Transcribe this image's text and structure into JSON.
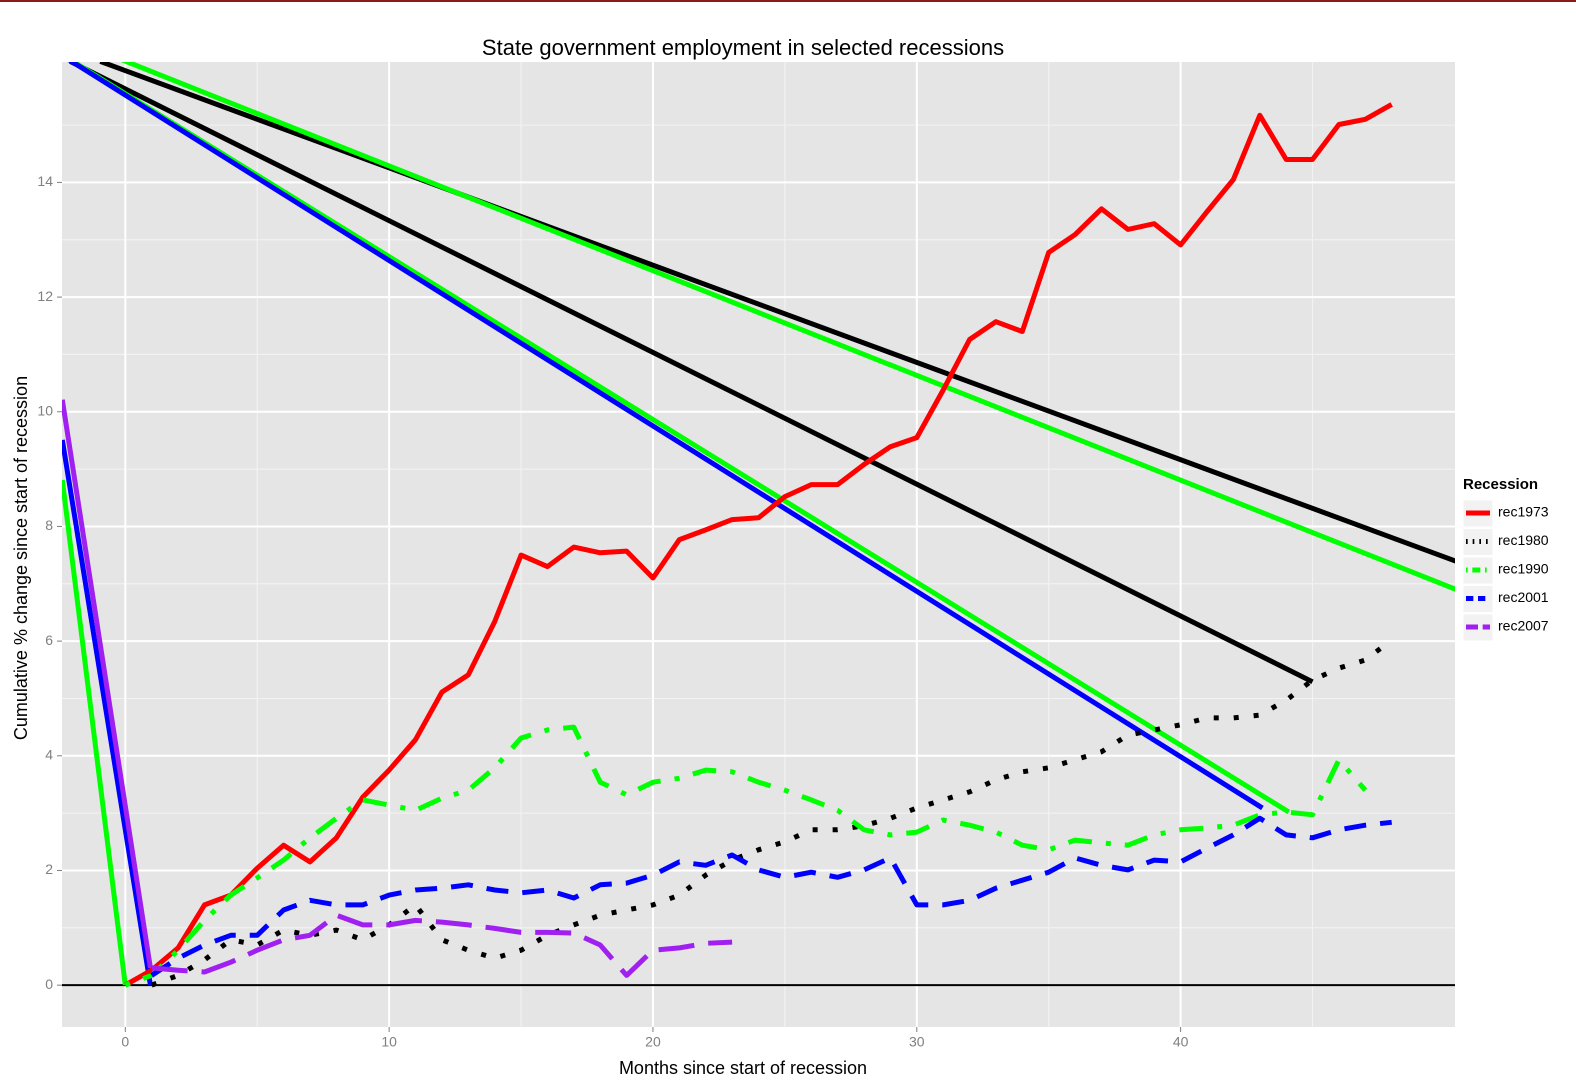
{
  "chart_data": {
    "type": "line",
    "title": "State government employment in selected recessions",
    "xlabel": "Months since start of recession",
    "ylabel": "Cumulative % change since start of recession",
    "legend_title": "Recession",
    "legend_position": "right",
    "grid": true,
    "hline": 0,
    "xlim": [
      -2.4,
      50.4
    ],
    "xticks": [
      0,
      10,
      20,
      30,
      40
    ],
    "ylim": [
      -0.73,
      16.1
    ],
    "yticks": [
      0,
      2,
      4,
      6,
      8,
      10,
      12,
      14
    ],
    "series": [
      {
        "name": "rec1973",
        "color": "#ff0000",
        "linetype": "solid",
        "x": [
          0,
          1,
          2,
          3,
          4,
          5,
          6,
          7,
          8,
          9,
          10,
          11,
          12,
          13,
          14,
          15,
          16,
          17,
          18,
          19,
          20,
          21,
          22,
          23,
          24,
          25,
          26,
          27,
          28,
          29,
          30,
          31,
          32,
          33,
          34,
          35,
          36,
          37,
          38,
          39,
          40,
          41,
          42,
          43,
          44,
          45,
          46,
          47,
          48
        ],
        "values": [
          0,
          0.26,
          0.65,
          1.4,
          1.57,
          2.04,
          2.44,
          2.15,
          2.57,
          3.28,
          3.75,
          4.28,
          5.11,
          5.41,
          6.34,
          7.5,
          7.3,
          7.64,
          7.54,
          7.57,
          7.1,
          7.77,
          7.94,
          8.12,
          8.15,
          8.52,
          8.73,
          8.73,
          9.08,
          9.39,
          9.55,
          10.38,
          11.26,
          11.57,
          11.4,
          12.78,
          13.09,
          13.54,
          13.18,
          13.28,
          12.91,
          13.49,
          14.05,
          15.17,
          14.4,
          14.4,
          15.01,
          15.1,
          15.36
        ]
      },
      {
        "name": "rec1980",
        "color": "#000000",
        "linetype": "dotted",
        "x": [
          1,
          2,
          3,
          4,
          5,
          6,
          7,
          8,
          9,
          10,
          11,
          12,
          13,
          14,
          15,
          16,
          17,
          18,
          19,
          20,
          21,
          22,
          23,
          24,
          25,
          26,
          27,
          28,
          29,
          30,
          31,
          32,
          33,
          34,
          35,
          36,
          37,
          38,
          39,
          40,
          41,
          42,
          43,
          44,
          45,
          46,
          47,
          48
        ],
        "values": [
          0,
          0.17,
          0.44,
          0.79,
          0.7,
          0.96,
          0.87,
          0.96,
          0.79,
          1.05,
          1.4,
          0.79,
          0.61,
          0.47,
          0.61,
          0.87,
          1.05,
          1.22,
          1.31,
          1.4,
          1.57,
          1.92,
          2.18,
          2.36,
          2.5,
          2.71,
          2.71,
          2.78,
          2.91,
          3.09,
          3.23,
          3.37,
          3.58,
          3.72,
          3.79,
          3.93,
          4.07,
          4.36,
          4.45,
          4.54,
          4.66,
          4.66,
          4.71,
          4.97,
          5.32,
          5.53,
          5.67,
          6.02
        ]
      },
      {
        "name": "rec1990",
        "color": "#00ff00",
        "linetype": "dotdash",
        "x": [
          0,
          1,
          2,
          3,
          4,
          5,
          6,
          7,
          8,
          9,
          10,
          11,
          12,
          13,
          14,
          15,
          16,
          17,
          18,
          19,
          20,
          21,
          22,
          23,
          24,
          25,
          26,
          27,
          28,
          29,
          30,
          31,
          32,
          33,
          34,
          35,
          36,
          37,
          38,
          39,
          40,
          41,
          42,
          43,
          44,
          45,
          46,
          47
        ],
        "values": [
          0,
          0.17,
          0.61,
          1.13,
          1.57,
          1.87,
          2.18,
          2.57,
          2.91,
          3.23,
          3.14,
          3.05,
          3.26,
          3.4,
          3.79,
          4.31,
          4.45,
          4.5,
          3.54,
          3.32,
          3.54,
          3.61,
          3.75,
          3.72,
          3.54,
          3.4,
          3.23,
          3.05,
          2.71,
          2.62,
          2.67,
          2.88,
          2.79,
          2.67,
          2.44,
          2.36,
          2.53,
          2.48,
          2.44,
          2.62,
          2.71,
          2.74,
          2.79,
          2.97,
          3.02,
          2.97,
          3.93,
          3.4
        ]
      },
      {
        "name": "rec2001",
        "color": "#0000ff",
        "linetype": "dashed",
        "x": [
          1,
          2,
          3,
          4,
          5,
          6,
          7,
          8,
          9,
          10,
          11,
          12,
          13,
          14,
          15,
          16,
          17,
          18,
          19,
          20,
          21,
          22,
          23,
          24,
          25,
          26,
          27,
          28,
          29,
          30,
          31,
          32,
          33,
          34,
          35,
          36,
          37,
          38,
          39,
          40,
          41,
          42,
          43,
          44,
          45,
          46,
          47,
          48
        ],
        "values": [
          0.17,
          0.47,
          0.7,
          0.87,
          0.87,
          1.31,
          1.48,
          1.4,
          1.4,
          1.57,
          1.66,
          1.69,
          1.75,
          1.66,
          1.61,
          1.66,
          1.52,
          1.75,
          1.78,
          1.92,
          2.15,
          2.09,
          2.27,
          2.01,
          1.88,
          1.97,
          1.88,
          2.01,
          2.22,
          1.4,
          1.4,
          1.48,
          1.69,
          1.83,
          1.97,
          2.22,
          2.09,
          2.01,
          2.18,
          2.15,
          2.39,
          2.62,
          2.91,
          2.62,
          2.57,
          2.71,
          2.79,
          2.84
        ]
      },
      {
        "name": "rec2007",
        "color": "#a020f0",
        "linetype": "longdash",
        "x": [
          1,
          2,
          3,
          4,
          5,
          6,
          7,
          8,
          9,
          10,
          11,
          12,
          13,
          14,
          15,
          16,
          17,
          18,
          19,
          20,
          21,
          22,
          23
        ],
        "values": [
          0.3,
          0.26,
          0.23,
          0.4,
          0.61,
          0.79,
          0.87,
          1.22,
          1.05,
          1.05,
          1.13,
          1.1,
          1.05,
          0.99,
          0.92,
          0.92,
          0.91,
          0.7,
          0.17,
          0.61,
          0.65,
          0.73,
          0.75
        ]
      },
      {
        "color": "#000000",
        "linetype": "solid",
        "x": [
          -0.95,
          51.04
        ],
        "values": [
          16.11,
          7.29
        ]
      },
      {
        "color": "#00ff00",
        "linetype": "solid",
        "x": [
          -4.74,
          51.04
        ],
        "values": [
          16.98,
          6.79
        ]
      },
      {
        "color": "#000000",
        "linetype": "solid",
        "x": [
          -2.09,
          45
        ],
        "values": [
          16.11,
          5.29
        ]
      },
      {
        "color": "#00ff00",
        "linetype": "solid",
        "x": [
          -2.3,
          44.1
        ],
        "values": [
          16.2,
          3.02
        ]
      },
      {
        "color": "#0000ff",
        "linetype": "solid",
        "x": [
          -2.28,
          43.1
        ],
        "values": [
          16.18,
          3.09
        ]
      },
      {
        "color": "#00ff00",
        "linetype": "solid",
        "x": [
          -2.39,
          0
        ],
        "values": [
          8.81,
          0
        ]
      },
      {
        "color": "#0000ff",
        "linetype": "solid",
        "x": [
          -2.39,
          0.95
        ],
        "values": [
          9.51,
          0
        ]
      },
      {
        "color": "#a020f0",
        "linetype": "solid",
        "x": [
          -2.39,
          0.95
        ],
        "values": [
          10.21,
          0.3
        ]
      }
    ]
  }
}
